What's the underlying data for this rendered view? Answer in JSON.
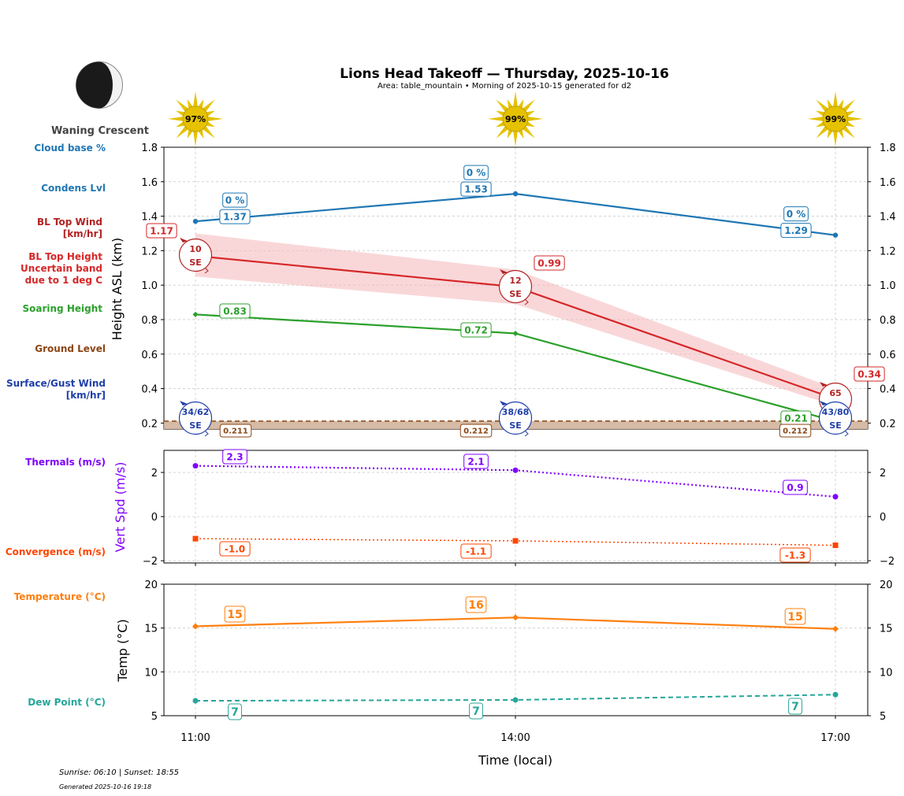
{
  "header": {
    "title": "Lions Head Takeoff — Thursday, 2025-10-16",
    "subtitle": "Area: table_mountain • Morning of 2025-10-15 generated for d2"
  },
  "moon": {
    "phase": "Waning Crescent",
    "icon": "moon-waning-crescent-icon"
  },
  "footer": {
    "sun_times": "Sunrise: 06:10 | Sunset: 18:55",
    "generated": "Generated 2025-10-16 19:18"
  },
  "colors": {
    "cloud": "#1f77b4",
    "bl_top_wind": "#b22222",
    "bl_top": "#d62728",
    "bl_band": "#f4b6b9",
    "soaring": "#2ca02c",
    "ground": "#8b4513",
    "ground_fill": "#d2b49c",
    "surface_wind": "#1f3fa8",
    "thermals": "#8000ff",
    "convergence": "#ff4500",
    "temperature": "#ff7f0e",
    "dewpoint": "#26a69a",
    "sun": "#e5c100",
    "grid": "#cccccc"
  },
  "left_labels": {
    "cloud_base": "Cloud base %",
    "condens": "Condens Lvl",
    "bl_top_wind_1": "BL Top Wind",
    "bl_top_wind_2": "[km/hr]",
    "bl_top_1": "BL Top Height",
    "bl_top_2": "Uncertain band",
    "bl_top_3": "due to 1 deg C",
    "soaring": "Soaring Height",
    "ground": "Ground Level",
    "surface_wind_1": "Surface/Gust Wind",
    "surface_wind_2": "[km/hr]",
    "thermals": "Thermals (m/s)",
    "convergence": "Convergence (m/s)",
    "temperature": "Temperature (°C)",
    "dewpoint": "Dew Point (°C)"
  },
  "chart_data": [
    {
      "type": "line",
      "panel": "height",
      "ylabel": "Height ASL (km)",
      "ylim": [
        0.165,
        1.8
      ],
      "yticks": [
        "0.2",
        "0.4",
        "0.6",
        "0.8",
        "1.0",
        "1.2",
        "1.4",
        "1.6",
        "1.8"
      ],
      "ytick_values": [
        0.2,
        0.4,
        0.6,
        0.8,
        1.0,
        1.2,
        1.4,
        1.6,
        1.8
      ],
      "x": [
        "11:00",
        "14:00",
        "17:00"
      ],
      "grid": true,
      "sun_percent": [
        "97%",
        "99%",
        "99%"
      ],
      "series": [
        {
          "name": "Condens Lvl",
          "values": [
            1.37,
            1.53,
            1.29
          ],
          "labels": [
            "1.37",
            "1.53",
            "1.29"
          ]
        },
        {
          "name": "Cloud base %",
          "values": [
            0,
            0,
            0
          ],
          "labels": [
            "0 %",
            "0 %",
            "0 %"
          ]
        },
        {
          "name": "BL Top Height",
          "values": [
            1.17,
            0.99,
            0.34
          ],
          "labels": [
            "1.17",
            "0.99",
            "0.34"
          ],
          "band_low": [
            1.05,
            0.89,
            0.3
          ],
          "band_high": [
            1.3,
            1.09,
            0.4
          ]
        },
        {
          "name": "Soaring Height",
          "values": [
            0.83,
            0.72,
            0.21
          ],
          "labels": [
            "0.83",
            "0.72",
            "0.21"
          ]
        },
        {
          "name": "Ground Level",
          "values": [
            0.211,
            0.212,
            0.212
          ],
          "labels": [
            "0.211",
            "0.212",
            "0.212"
          ]
        }
      ],
      "bl_top_wind": [
        {
          "speed": "10",
          "dir": "SE"
        },
        {
          "speed": "12",
          "dir": "SE"
        },
        {
          "speed": "65",
          "dir": "SE"
        }
      ],
      "surface_wind": [
        {
          "speed": "34/62",
          "dir": "SE"
        },
        {
          "speed": "38/68",
          "dir": "SE"
        },
        {
          "speed": "43/80",
          "dir": "SE"
        }
      ]
    },
    {
      "type": "line",
      "panel": "vertical_speed",
      "ylabel": "Vert Spd (m/s)",
      "ylim": [
        -2.1,
        3.0
      ],
      "yticks": [
        "−2",
        "0",
        "2"
      ],
      "ytick_values": [
        -2,
        0,
        2
      ],
      "x": [
        "11:00",
        "14:00",
        "17:00"
      ],
      "grid": true,
      "series": [
        {
          "name": "Thermals (m/s)",
          "values": [
            2.3,
            2.1,
            0.9
          ],
          "labels": [
            "2.3",
            "2.1",
            "0.9"
          ]
        },
        {
          "name": "Convergence (m/s)",
          "values": [
            -1.0,
            -1.1,
            -1.3
          ],
          "labels": [
            "-1.0",
            "-1.1",
            "-1.3"
          ]
        }
      ]
    },
    {
      "type": "line",
      "panel": "temperature",
      "ylabel": "Temp (°C)",
      "xlabel": "Time (local)",
      "ylim": [
        5,
        20
      ],
      "yticks": [
        "5",
        "10",
        "15",
        "20"
      ],
      "ytick_values": [
        5,
        10,
        15,
        20
      ],
      "x": [
        "11:00",
        "14:00",
        "17:00"
      ],
      "xticks": [
        "11:00",
        "14:00",
        "17:00"
      ],
      "grid": true,
      "series": [
        {
          "name": "Temperature (°C)",
          "values": [
            15.2,
            16.2,
            14.9
          ],
          "labels": [
            "15",
            "16",
            "15"
          ]
        },
        {
          "name": "Dew Point (°C)",
          "values": [
            6.7,
            6.8,
            7.4
          ],
          "labels": [
            "7",
            "7",
            "7"
          ]
        }
      ]
    }
  ]
}
